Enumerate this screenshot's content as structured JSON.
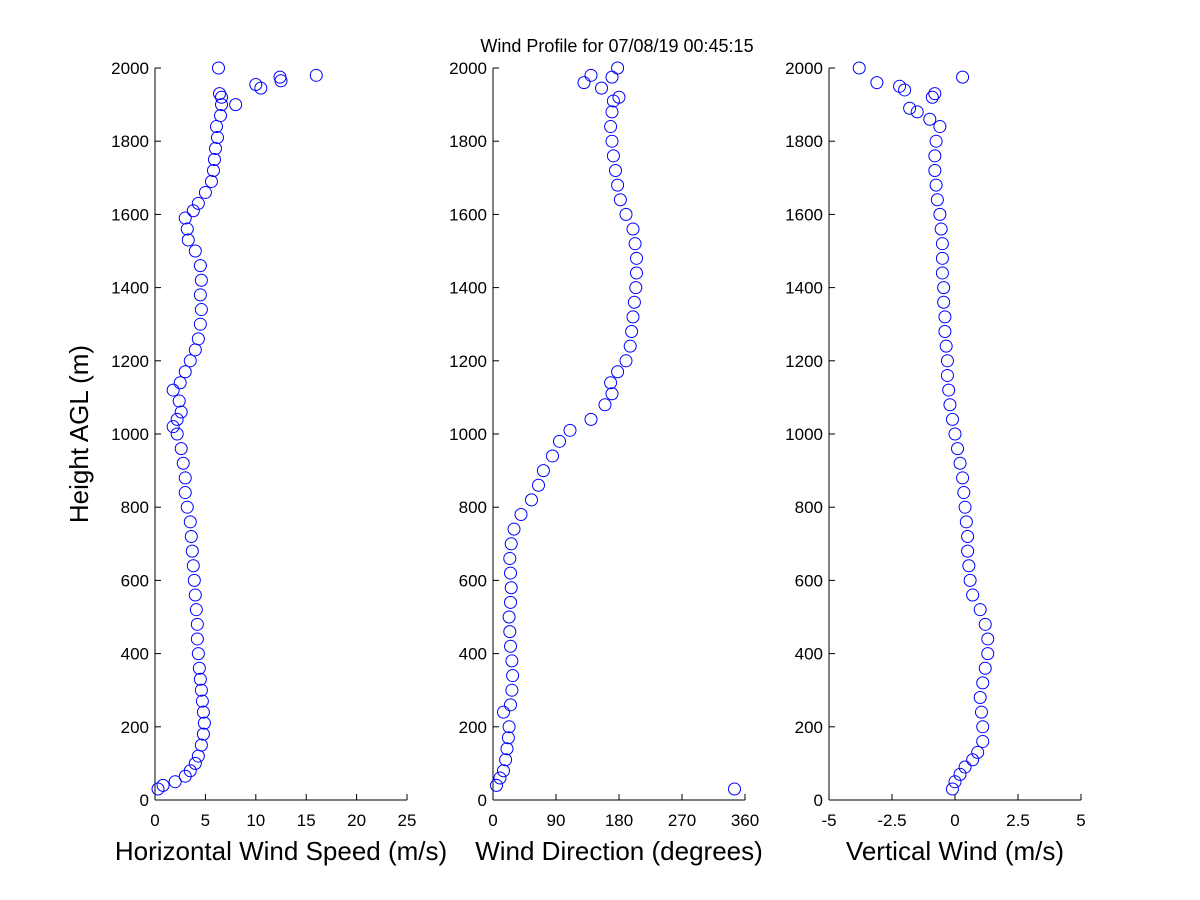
{
  "title": "Wind Profile for  07/08/19 00:45:15",
  "colors": {
    "marker": "#0000ff",
    "axis": "#000000",
    "background": "#ffffff"
  },
  "chart_data": [
    {
      "type": "scatter",
      "xlabel": "Horizontal Wind Speed (m/s)",
      "ylabel": "Height AGL (m)",
      "xlim": [
        0,
        25
      ],
      "ylim": [
        0,
        2000
      ],
      "xticks": [
        "0",
        "5",
        "10",
        "15",
        "20",
        "25"
      ],
      "yticks": [
        "0",
        "200",
        "400",
        "600",
        "800",
        "1000",
        "1200",
        "1400",
        "1600",
        "1800",
        "2000"
      ],
      "grid": false,
      "points": [
        [
          0.3,
          30
        ],
        [
          0.8,
          40
        ],
        [
          2.0,
          50
        ],
        [
          3.0,
          65
        ],
        [
          3.5,
          80
        ],
        [
          4.0,
          100
        ],
        [
          4.3,
          120
        ],
        [
          4.6,
          150
        ],
        [
          4.8,
          180
        ],
        [
          4.9,
          210
        ],
        [
          4.8,
          240
        ],
        [
          4.7,
          270
        ],
        [
          4.6,
          300
        ],
        [
          4.5,
          330
        ],
        [
          4.4,
          360
        ],
        [
          4.3,
          400
        ],
        [
          4.2,
          440
        ],
        [
          4.2,
          480
        ],
        [
          4.1,
          520
        ],
        [
          4.0,
          560
        ],
        [
          3.9,
          600
        ],
        [
          3.8,
          640
        ],
        [
          3.7,
          680
        ],
        [
          3.6,
          720
        ],
        [
          3.5,
          760
        ],
        [
          3.2,
          800
        ],
        [
          3.0,
          840
        ],
        [
          3.0,
          880
        ],
        [
          2.8,
          920
        ],
        [
          2.6,
          960
        ],
        [
          2.2,
          1000
        ],
        [
          1.8,
          1020
        ],
        [
          2.2,
          1040
        ],
        [
          2.6,
          1060
        ],
        [
          2.4,
          1090
        ],
        [
          1.8,
          1120
        ],
        [
          2.5,
          1140
        ],
        [
          3.0,
          1170
        ],
        [
          3.5,
          1200
        ],
        [
          4.0,
          1230
        ],
        [
          4.3,
          1260
        ],
        [
          4.5,
          1300
        ],
        [
          4.6,
          1340
        ],
        [
          4.5,
          1380
        ],
        [
          4.6,
          1420
        ],
        [
          4.5,
          1460
        ],
        [
          4.0,
          1500
        ],
        [
          3.3,
          1530
        ],
        [
          3.2,
          1560
        ],
        [
          3.0,
          1590
        ],
        [
          3.8,
          1610
        ],
        [
          4.3,
          1630
        ],
        [
          5.0,
          1660
        ],
        [
          5.6,
          1690
        ],
        [
          5.8,
          1720
        ],
        [
          5.9,
          1750
        ],
        [
          6.0,
          1780
        ],
        [
          6.2,
          1810
        ],
        [
          6.1,
          1840
        ],
        [
          6.5,
          1870
        ],
        [
          6.6,
          1900
        ],
        [
          6.4,
          1930
        ],
        [
          8.0,
          1900
        ],
        [
          6.6,
          1920
        ],
        [
          10.5,
          1945
        ],
        [
          10.0,
          1955
        ],
        [
          12.5,
          1965
        ],
        [
          12.4,
          1975
        ],
        [
          16.0,
          1980
        ],
        [
          6.3,
          2000
        ]
      ]
    },
    {
      "type": "scatter",
      "xlabel": "Wind Direction (degrees)",
      "ylabel": "",
      "xlim": [
        0,
        360
      ],
      "ylim": [
        0,
        2000
      ],
      "xticks": [
        "0",
        "90",
        "180",
        "270",
        "360"
      ],
      "yticks": [
        "0",
        "200",
        "400",
        "600",
        "800",
        "1000",
        "1200",
        "1400",
        "1600",
        "1800",
        "2000"
      ],
      "grid": false,
      "points": [
        [
          5,
          40
        ],
        [
          10,
          60
        ],
        [
          15,
          80
        ],
        [
          18,
          110
        ],
        [
          20,
          140
        ],
        [
          22,
          170
        ],
        [
          23,
          200
        ],
        [
          15,
          240
        ],
        [
          25,
          260
        ],
        [
          27,
          300
        ],
        [
          28,
          340
        ],
        [
          27,
          380
        ],
        [
          25,
          420
        ],
        [
          24,
          460
        ],
        [
          23,
          500
        ],
        [
          25,
          540
        ],
        [
          26,
          580
        ],
        [
          25,
          620
        ],
        [
          24,
          660
        ],
        [
          26,
          700
        ],
        [
          30,
          740
        ],
        [
          40,
          780
        ],
        [
          55,
          820
        ],
        [
          65,
          860
        ],
        [
          72,
          900
        ],
        [
          85,
          940
        ],
        [
          95,
          980
        ],
        [
          110,
          1010
        ],
        [
          140,
          1040
        ],
        [
          160,
          1080
        ],
        [
          170,
          1110
        ],
        [
          168,
          1140
        ],
        [
          178,
          1170
        ],
        [
          190,
          1200
        ],
        [
          196,
          1240
        ],
        [
          198,
          1280
        ],
        [
          200,
          1320
        ],
        [
          202,
          1360
        ],
        [
          204,
          1400
        ],
        [
          205,
          1440
        ],
        [
          205,
          1480
        ],
        [
          203,
          1520
        ],
        [
          200,
          1560
        ],
        [
          190,
          1600
        ],
        [
          182,
          1640
        ],
        [
          178,
          1680
        ],
        [
          175,
          1720
        ],
        [
          172,
          1760
        ],
        [
          170,
          1800
        ],
        [
          168,
          1840
        ],
        [
          170,
          1880
        ],
        [
          172,
          1910
        ],
        [
          180,
          1920
        ],
        [
          155,
          1945
        ],
        [
          130,
          1960
        ],
        [
          140,
          1980
        ],
        [
          170,
          1975
        ],
        [
          178,
          2000
        ],
        [
          345,
          30
        ]
      ]
    },
    {
      "type": "scatter",
      "xlabel": "Vertical Wind (m/s)",
      "ylabel": "",
      "xlim": [
        -5,
        5
      ],
      "ylim": [
        0,
        2000
      ],
      "xticks": [
        "-5",
        "-2.5",
        "0",
        "2.5",
        "5"
      ],
      "yticks": [
        "0",
        "200",
        "400",
        "600",
        "800",
        "1000",
        "1200",
        "1400",
        "1600",
        "1800",
        "2000"
      ],
      "grid": false,
      "points": [
        [
          -0.1,
          30
        ],
        [
          0.0,
          50
        ],
        [
          0.2,
          70
        ],
        [
          0.4,
          90
        ],
        [
          0.7,
          110
        ],
        [
          0.9,
          130
        ],
        [
          1.1,
          160
        ],
        [
          1.1,
          200
        ],
        [
          1.05,
          240
        ],
        [
          1.0,
          280
        ],
        [
          1.1,
          320
        ],
        [
          1.2,
          360
        ],
        [
          1.3,
          400
        ],
        [
          1.3,
          440
        ],
        [
          1.2,
          480
        ],
        [
          1.0,
          520
        ],
        [
          0.7,
          560
        ],
        [
          0.6,
          600
        ],
        [
          0.55,
          640
        ],
        [
          0.5,
          680
        ],
        [
          0.5,
          720
        ],
        [
          0.45,
          760
        ],
        [
          0.4,
          800
        ],
        [
          0.35,
          840
        ],
        [
          0.3,
          880
        ],
        [
          0.2,
          920
        ],
        [
          0.1,
          960
        ],
        [
          0.0,
          1000
        ],
        [
          -0.1,
          1040
        ],
        [
          -0.2,
          1080
        ],
        [
          -0.25,
          1120
        ],
        [
          -0.3,
          1160
        ],
        [
          -0.3,
          1200
        ],
        [
          -0.35,
          1240
        ],
        [
          -0.4,
          1280
        ],
        [
          -0.4,
          1320
        ],
        [
          -0.45,
          1360
        ],
        [
          -0.45,
          1400
        ],
        [
          -0.5,
          1440
        ],
        [
          -0.5,
          1480
        ],
        [
          -0.5,
          1520
        ],
        [
          -0.55,
          1560
        ],
        [
          -0.6,
          1600
        ],
        [
          -0.7,
          1640
        ],
        [
          -0.75,
          1680
        ],
        [
          -0.8,
          1720
        ],
        [
          -0.8,
          1760
        ],
        [
          -0.75,
          1800
        ],
        [
          -0.6,
          1840
        ],
        [
          -1.0,
          1860
        ],
        [
          -1.5,
          1880
        ],
        [
          -1.8,
          1890
        ],
        [
          -0.9,
          1920
        ],
        [
          -0.8,
          1930
        ],
        [
          -2.0,
          1940
        ],
        [
          -2.2,
          1950
        ],
        [
          -3.1,
          1960
        ],
        [
          0.3,
          1975
        ],
        [
          -3.8,
          2000
        ]
      ]
    }
  ]
}
